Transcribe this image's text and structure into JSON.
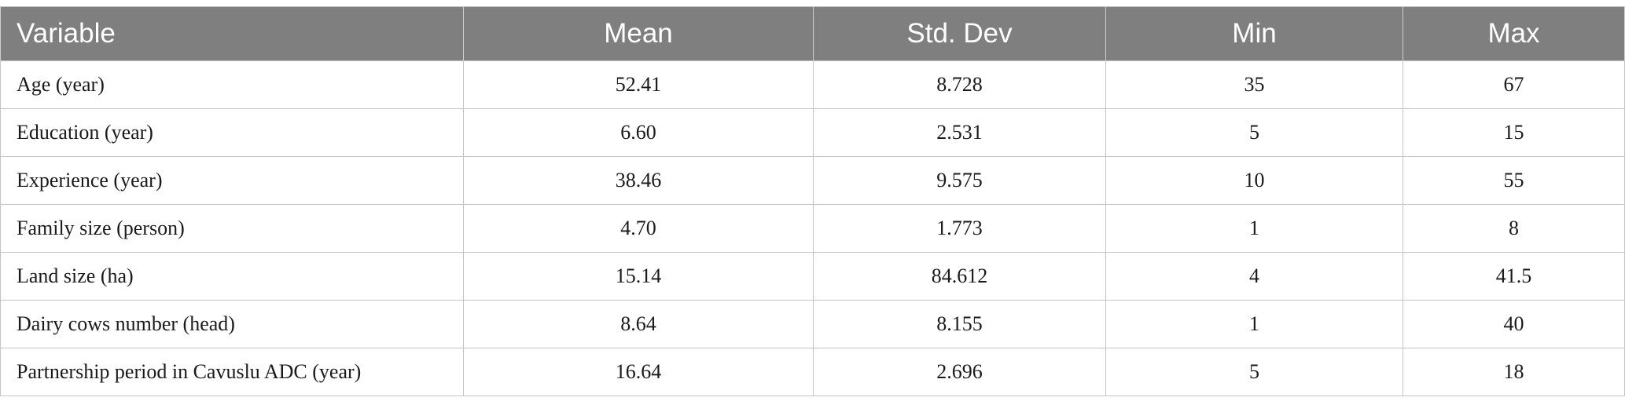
{
  "table": {
    "headers": [
      "Variable",
      "Mean",
      "Std. Dev",
      "Min",
      "Max"
    ],
    "rows": [
      [
        "Age (year)",
        "52.41",
        "8.728",
        "35",
        "67"
      ],
      [
        "Education (year)",
        "6.60",
        "2.531",
        "5",
        "15"
      ],
      [
        "Experience (year)",
        "38.46",
        "9.575",
        "10",
        "55"
      ],
      [
        "Family size (person)",
        "4.70",
        "1.773",
        "1",
        "8"
      ],
      [
        "Land size (ha)",
        "15.14",
        "84.612",
        "4",
        "41.5"
      ],
      [
        "Dairy cows number (head)",
        "8.64",
        "8.155",
        "1",
        "40"
      ],
      [
        "Partnership period in Cavuslu ADC (year)",
        "16.64",
        "2.696",
        "5",
        "18"
      ]
    ]
  },
  "colors": {
    "header_bg": "#7f7f7f",
    "header_text": "#ffffff",
    "grid": "#c4c4c4"
  }
}
